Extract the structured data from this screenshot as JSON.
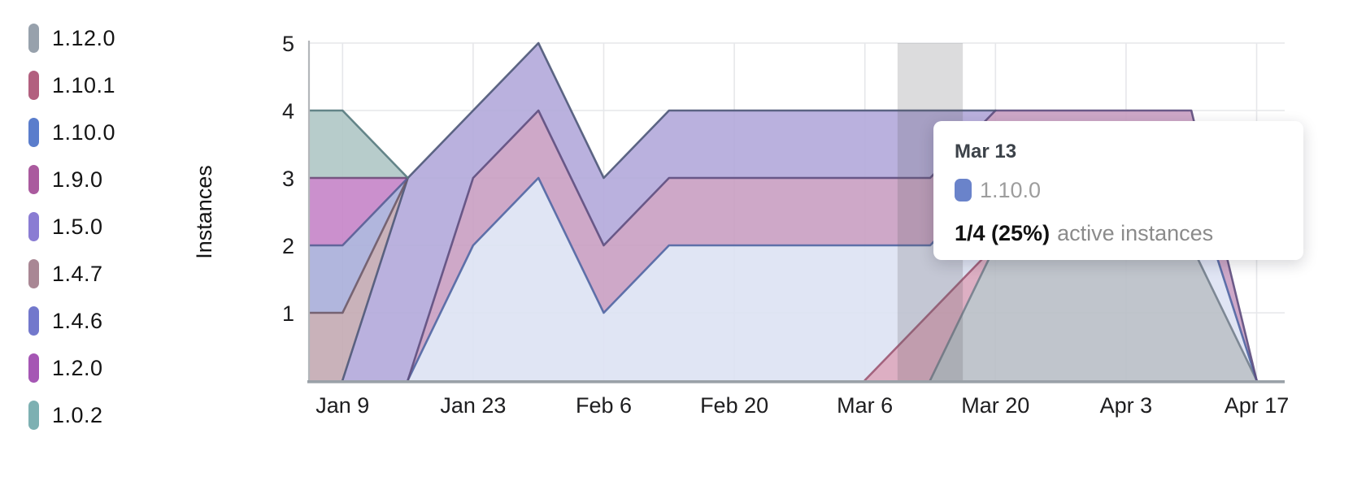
{
  "legend": {
    "items": [
      {
        "label": "1.12.0",
        "color": "#97a1ac"
      },
      {
        "label": "1.10.1",
        "color": "#b2607f"
      },
      {
        "label": "1.10.0",
        "color": "#5a7dcc"
      },
      {
        "label": "1.9.0",
        "color": "#aa5a9e"
      },
      {
        "label": "1.5.0",
        "color": "#8a7cd3"
      },
      {
        "label": "1.4.7",
        "color": "#a98794"
      },
      {
        "label": "1.4.6",
        "color": "#7278cc"
      },
      {
        "label": "1.2.0",
        "color": "#a556b4"
      },
      {
        "label": "1.0.2",
        "color": "#7db0b2"
      }
    ]
  },
  "chart_data": {
    "type": "area",
    "stacked": true,
    "title": "",
    "xlabel": "",
    "ylabel": "Instances",
    "ylim": [
      0,
      5
    ],
    "yticks": [
      1,
      2,
      3,
      4,
      5
    ],
    "grid": true,
    "legend_position": "left",
    "x": [
      "Jan 2",
      "Jan 9",
      "Jan 16",
      "Jan 23",
      "Jan 30",
      "Feb 6",
      "Feb 13",
      "Feb 20",
      "Feb 27",
      "Mar 6",
      "Mar 13",
      "Mar 20",
      "Mar 27",
      "Apr 3",
      "Apr 10",
      "Apr 17"
    ],
    "x_tick_indices": [
      1,
      3,
      5,
      7,
      9,
      11,
      13,
      15
    ],
    "x_tick_labels": [
      "Jan 9",
      "Jan 23",
      "Feb 6",
      "Feb 20",
      "Mar 6",
      "Mar 20",
      "Apr 3",
      "Apr 17"
    ],
    "series": [
      {
        "name": "1.12.0",
        "fill": "#b9bfc7",
        "line": "#737e8c",
        "values": [
          0,
          0,
          0,
          0,
          0,
          0,
          0,
          0,
          0,
          0,
          0,
          2,
          2,
          2,
          2,
          0
        ]
      },
      {
        "name": "1.10.1",
        "fill": "#d9a6bc",
        "line": "#9c5873",
        "values": [
          0,
          0,
          0,
          0,
          0,
          0,
          0,
          0,
          0,
          0,
          1,
          0,
          0,
          0,
          0,
          0
        ]
      },
      {
        "name": "1.10.0",
        "fill": "#dde2f3",
        "line": "#5066a3",
        "values": [
          0,
          0,
          0,
          2,
          3,
          1,
          2,
          2,
          2,
          2,
          1,
          1,
          1,
          1,
          1,
          0
        ]
      },
      {
        "name": "1.9.0",
        "fill": "#c99fc2",
        "line": "#5e4e7e",
        "values": [
          0,
          0,
          0,
          1,
          1,
          1,
          1,
          1,
          1,
          1,
          1,
          1,
          1,
          1,
          1,
          0
        ]
      },
      {
        "name": "1.5.0",
        "fill": "#b2a8da",
        "line": "#4e5878",
        "values": [
          0,
          0,
          3,
          1,
          1,
          1,
          1,
          1,
          1,
          1,
          1,
          0,
          0,
          0,
          0,
          0
        ]
      },
      {
        "name": "1.4.7",
        "fill": "#c3aab3",
        "line": "#6e5a68",
        "values": [
          1,
          1,
          0,
          0,
          0,
          0,
          0,
          0,
          0,
          0,
          0,
          0,
          0,
          0,
          0,
          0
        ]
      },
      {
        "name": "1.4.6",
        "fill": "#a9aed9",
        "line": "#585e95",
        "values": [
          1,
          1,
          0,
          0,
          0,
          0,
          0,
          0,
          0,
          0,
          0,
          0,
          0,
          0,
          0,
          0
        ]
      },
      {
        "name": "1.2.0",
        "fill": "#c584c8",
        "line": "#6f4a79",
        "values": [
          1,
          1,
          0,
          0,
          0,
          0,
          0,
          0,
          0,
          0,
          0,
          0,
          0,
          0,
          0,
          0
        ]
      },
      {
        "name": "1.0.2",
        "fill": "#afc7c5",
        "line": "#577a7e",
        "values": [
          1,
          1,
          0,
          0,
          0,
          0,
          0,
          0,
          0,
          0,
          0,
          0,
          0,
          0,
          0,
          0
        ]
      }
    ],
    "hover": {
      "x_index": 10,
      "label": "Mar 13"
    }
  },
  "tooltip": {
    "title": "Mar 13",
    "swatch_color": "#6a83ca",
    "series_label": "1.10.0",
    "value_text": "1/4 (25%)",
    "value_suffix": "active instances"
  }
}
